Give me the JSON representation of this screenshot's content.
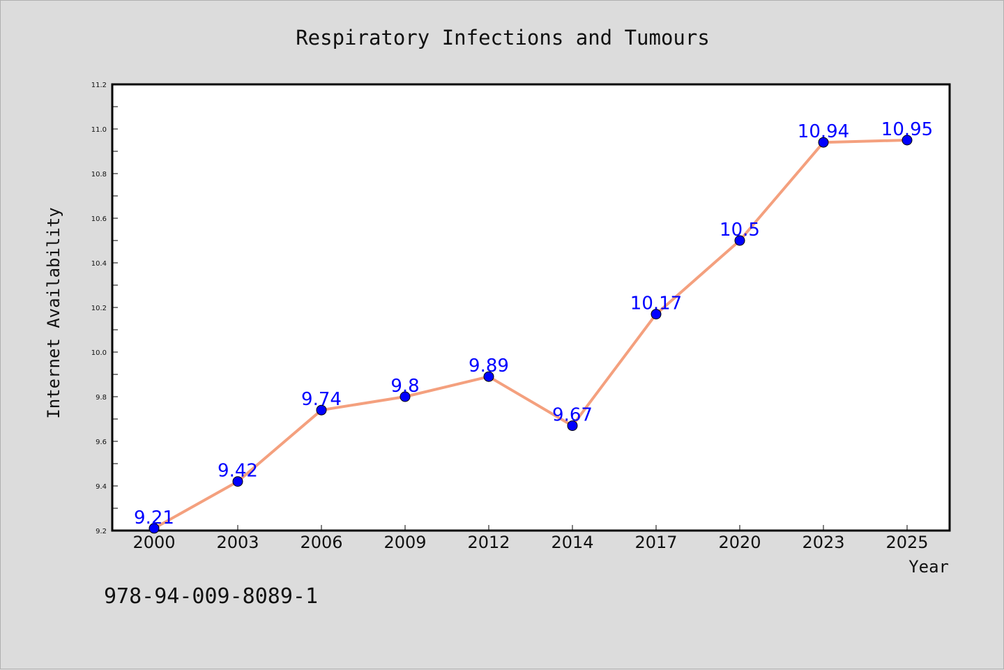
{
  "colors": {
    "background": "#dcdcdc",
    "plot_background": "#ffffff",
    "line": "#f4a07e",
    "marker": "#0000ff",
    "label": "#0000ff"
  },
  "footer_text": "978-94-009-8089-1",
  "chart_data": {
    "type": "line",
    "title": "Respiratory Infections and Tumours",
    "xlabel": "Year",
    "ylabel": "Internet Availability",
    "categories": [
      "2000",
      "2003",
      "2006",
      "2009",
      "2012",
      "2014",
      "2017",
      "2020",
      "2023",
      "2025"
    ],
    "series": [
      {
        "values": [
          9.21,
          9.42,
          9.74,
          9.8,
          9.89,
          9.67,
          10.17,
          10.5,
          10.94,
          10.95
        ],
        "data_labels": [
          "9.21",
          "9.42",
          "9.74",
          "9.8",
          "9.89",
          "9.67",
          "10.17",
          "10.5",
          "10.94",
          "10.95"
        ]
      }
    ],
    "ylim": [
      9.2,
      11.2
    ],
    "yticks": [
      "9.2",
      "9.4",
      "9.6",
      "9.8",
      "10.0",
      "10.2",
      "10.4",
      "10.6",
      "10.8",
      "11.0",
      "11.2"
    ],
    "grid": false,
    "legend": "none"
  }
}
